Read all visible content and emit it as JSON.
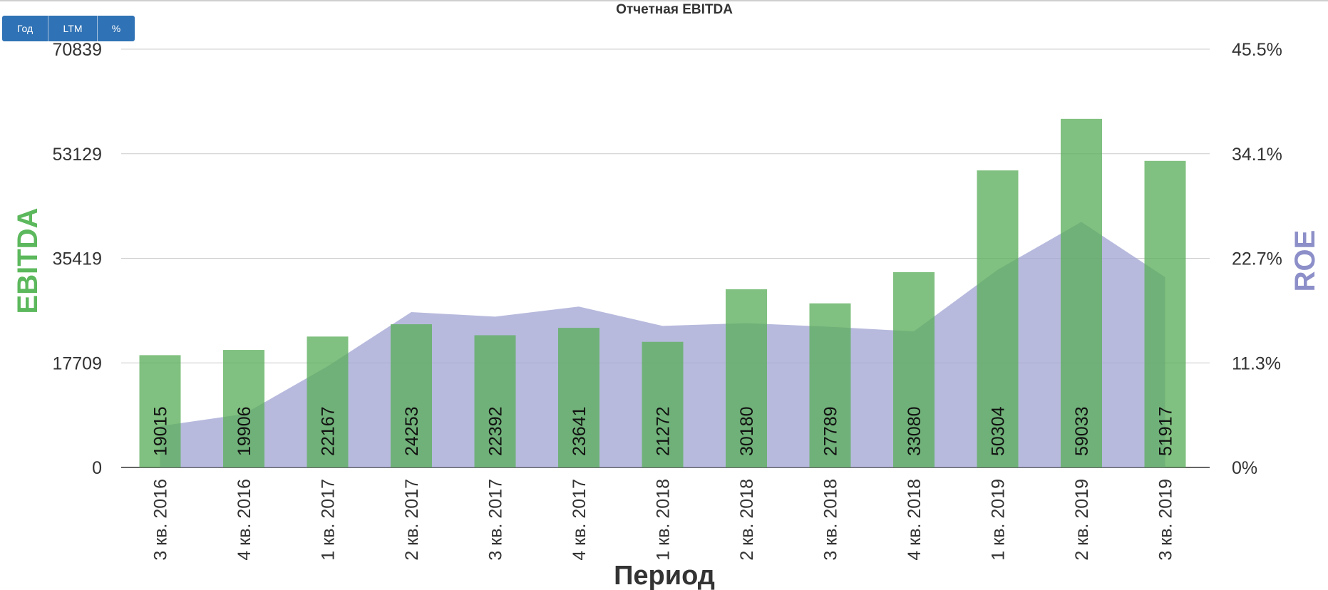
{
  "toolbar": {
    "buttons": [
      {
        "label": "Год"
      },
      {
        "label": "LTM"
      },
      {
        "label": "%"
      }
    ]
  },
  "colors": {
    "bar": "#5cae5c",
    "area": "#a3a6d4",
    "left_axis_title": "#5cb85c",
    "right_axis_title": "#8c8fc8",
    "button": "#2f72b5"
  },
  "chart_data": {
    "type": "bar",
    "title": "Отчетная EBITDA",
    "xlabel": "Период",
    "ylabel": "EBITDA",
    "y2label": "ROE",
    "categories": [
      "3 кв. 2016",
      "4 кв. 2016",
      "1 кв. 2017",
      "2 кв. 2017",
      "3 кв. 2017",
      "4 кв. 2017",
      "1 кв. 2018",
      "2 кв. 2018",
      "3 кв. 2018",
      "4 кв. 2018",
      "1 кв. 2019",
      "2 кв. 2019",
      "3 кв. 2019"
    ],
    "series": [
      {
        "name": "EBITDA",
        "type": "bar",
        "axis": "left",
        "values": [
          19015,
          19906,
          22167,
          24253,
          22392,
          23641,
          21272,
          30180,
          27789,
          33080,
          50304,
          59033,
          51917
        ]
      },
      {
        "name": "ROE",
        "type": "area",
        "axis": "right",
        "values": [
          4.5,
          5.8,
          11.0,
          16.9,
          16.4,
          17.5,
          15.4,
          15.7,
          15.3,
          14.8,
          21.5,
          26.7,
          20.7
        ]
      }
    ],
    "ylim": [
      0,
      70839
    ],
    "yticks": [
      "0",
      "17709",
      "35419",
      "53129",
      "70839"
    ],
    "y2lim": [
      0,
      45.5
    ],
    "y2ticks": [
      "0%",
      "11.3%",
      "22.7%",
      "34.1%",
      "45.5%"
    ],
    "grid": true,
    "legend": "none"
  }
}
